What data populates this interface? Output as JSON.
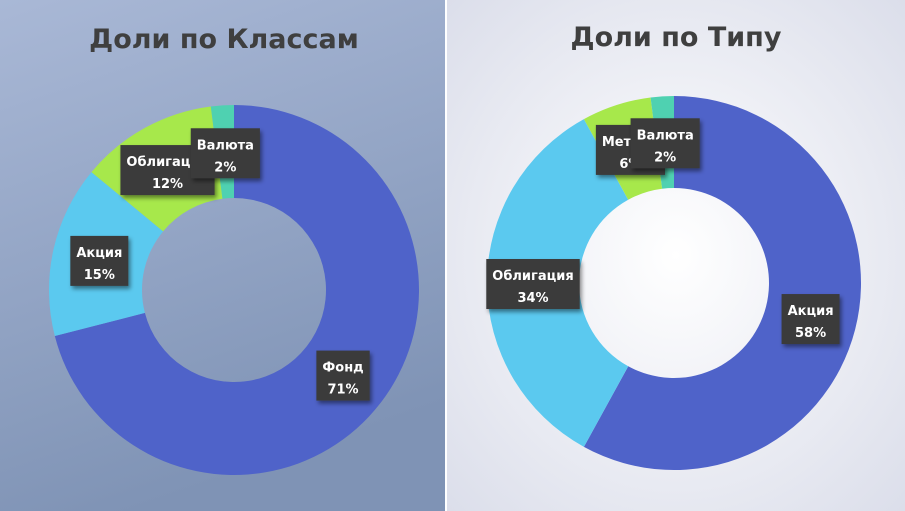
{
  "chart_data": [
    {
      "type": "donut",
      "title": "Доли по Классам",
      "categories": [
        "Фонд",
        "Акция",
        "Облигации",
        "Валюта"
      ],
      "values": [
        71,
        15,
        12,
        2
      ],
      "value_labels": [
        "71%",
        "15%",
        "12%",
        "2%"
      ],
      "colors": [
        "#4f63c9",
        "#5bc9ef",
        "#a7e84b",
        "#4fd1b1"
      ]
    },
    {
      "type": "donut",
      "title": "Доли по Типу",
      "categories": [
        "Акция",
        "Облигация",
        "Металл",
        "Валюта"
      ],
      "values": [
        58,
        34,
        6,
        2
      ],
      "value_labels": [
        "58%",
        "34%",
        "6%",
        "2%"
      ],
      "colors": [
        "#4f63c9",
        "#5bc9ef",
        "#a7e84b",
        "#4fd1b1"
      ]
    }
  ]
}
